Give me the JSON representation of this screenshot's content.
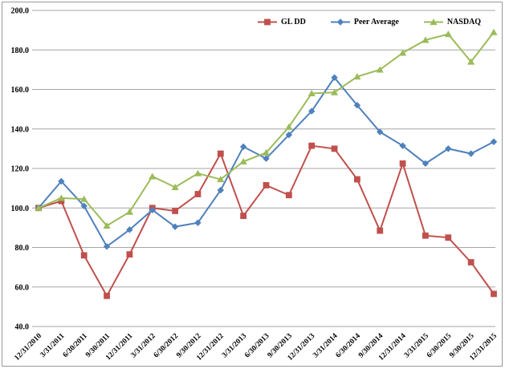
{
  "chart_data": {
    "type": "line",
    "title": "",
    "xlabel": "",
    "ylabel": "",
    "ylim": [
      40,
      200
    ],
    "grid": true,
    "legend_position": "top",
    "colors": {
      "gridline": "#a6a6a6",
      "frame_border": "#9a9a9a",
      "text": "#000000"
    },
    "y_axis": {
      "min": 40,
      "max": 200,
      "step": 20
    },
    "y_tick_labels": [
      "200.0",
      "180.0",
      "160.0",
      "140.0",
      "120.0",
      "100.0",
      "80.0",
      "60.0",
      "40.0"
    ],
    "x_labels": [
      "12/31/2010",
      "3/31/2011",
      "6/30/2011",
      "9/30/2011",
      "12/31/2011",
      "3/31/2012",
      "6/30/2012",
      "9/30/2012",
      "12/31/2012",
      "3/31/2013",
      "6/30/2013",
      "9/30/2013",
      "12/31/2013",
      "3/31/2014",
      "6/30/2014",
      "9/30/2014",
      "12/31/2014",
      "3/31/2015",
      "6/30/2015",
      "9/30/2015",
      "12/31/2015"
    ],
    "series": [
      {
        "id": "gldd",
        "name": "GL DD",
        "color": "#c0504d",
        "marker": "square",
        "values": [
          100,
          103.5,
          76,
          55.5,
          76.5,
          100,
          98.5,
          107,
          127.5,
          96,
          111.5,
          106.5,
          131.5,
          130,
          114.5,
          88.5,
          122.5,
          86,
          85,
          72.5,
          56.5
        ]
      },
      {
        "id": "peer-average",
        "name": "Peer Average",
        "color": "#4f81bd",
        "marker": "diamond",
        "values": [
          100,
          113.5,
          101,
          80.5,
          89,
          99,
          90.5,
          92.5,
          109,
          131,
          125,
          137,
          149,
          166,
          152,
          138.5,
          131.5,
          122.5,
          130,
          127.5,
          133.5
        ]
      },
      {
        "id": "nasdaq",
        "name": "NASDAQ",
        "color": "#9bbb59",
        "marker": "triangle",
        "values": [
          100,
          105,
          104.5,
          91,
          98,
          116,
          110.5,
          117.5,
          114.5,
          123.5,
          128,
          141,
          158,
          158.5,
          166.5,
          170,
          178.5,
          185,
          188,
          174,
          189
        ]
      }
    ]
  }
}
